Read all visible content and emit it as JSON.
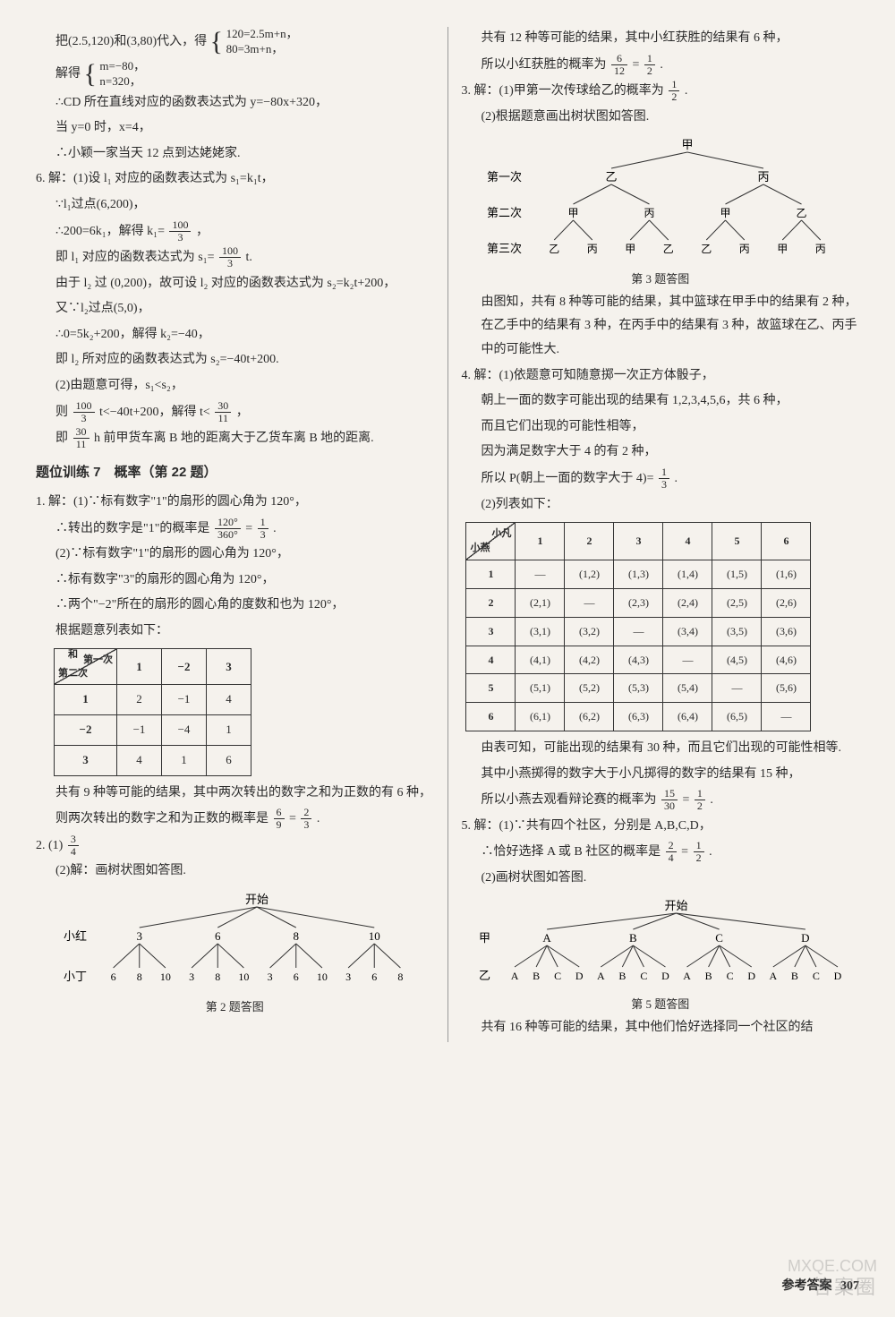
{
  "leftCol": {
    "p1_lines": [
      "把(2.5,120)和(3,80)代入，得",
      "解得",
      "∴CD 所在直线对应的函数表达式为 y=−80x+320，",
      "当 y=0 时，x=4，",
      "∴小颖一家当天 12 点到达姥姥家."
    ],
    "eq1_top": "120=2.5m+n，",
    "eq1_bot": "80=3m+n，",
    "eq2_top": "m=−80，",
    "eq2_bot": "n=320，",
    "q6": [
      "6. 解：(1)设 l₁ 对应的函数表达式为 s₁=k₁t，",
      "∵l₁过点(6,200)，",
      "∴200=6k₁，解得 k₁=",
      "即 l₁ 对应的函数表达式为 s₁=",
      "由于 l₂ 过 (0,200)，故可设 l₂ 对应的函数表达式为 s₂=k₂t+200，",
      "又∵l₂过点(5,0)，",
      "∴0=5k₂+200，解得 k₂=−40，",
      "即 l₂ 所对应的函数表达式为 s₂=−40t+200.",
      "(2)由题意可得，s₁<s₂，",
      "则",
      "即"
    ],
    "frac_100_3_n": "100",
    "frac_100_3_d": "3",
    "q6_l9_suffix": "t<−40t+200，解得 t<",
    "frac_30_11_n": "30",
    "frac_30_11_d": "11",
    "q6_l10_suffix": " h 前甲货车离 B 地的距离大于乙货车离 B 地的距离.",
    "section7_title": "题位训练 7　概率（第 22 题）",
    "q1": [
      "1. 解：(1)∵标有数字\"1\"的扇形的圆心角为 120°，",
      "∴转出的数字是\"1\"的概率是",
      "(2)∵标有数字\"1\"的扇形的圆心角为 120°，",
      "∴标有数字\"3\"的扇形的圆心角为 120°，",
      "∴两个\"−2\"所在的扇形的圆心角的度数和也为 120°，",
      "根据题意列表如下："
    ],
    "frac_120_360_n": "120°",
    "frac_120_360_d": "360°",
    "frac_1_3_n": "1",
    "frac_1_3_d": "3",
    "table1": {
      "diag_top": "第一次",
      "diag_bot_label": "和",
      "diag_bot": "第二次",
      "cols": [
        "1",
        "−2",
        "3"
      ],
      "rows": [
        {
          "h": "1",
          "cells": [
            "2",
            "−1",
            "4"
          ]
        },
        {
          "h": "−2",
          "cells": [
            "−1",
            "−4",
            "1"
          ]
        },
        {
          "h": "3",
          "cells": [
            "4",
            "1",
            "6"
          ]
        }
      ]
    },
    "q1_after": [
      "共有 9 种等可能的结果，其中两次转出的数字之和为正数的有 6 种，",
      "则两次转出的数字之和为正数的概率是"
    ],
    "frac_6_9_n": "6",
    "frac_6_9_d": "9",
    "frac_2_3_n": "2",
    "frac_2_3_d": "3",
    "q2_a": "2. (1)",
    "frac_3_4_n": "3",
    "frac_3_4_d": "4",
    "q2_b": "(2)解：画树状图如答图.",
    "tree2": {
      "root": "开始",
      "level1_label": "小红",
      "level1": [
        "3",
        "6",
        "8",
        "10"
      ],
      "level2_label": "小丁",
      "level2": [
        [
          "6",
          "8",
          "10"
        ],
        [
          "3",
          "8",
          "10"
        ],
        [
          "3",
          "6",
          "10"
        ],
        [
          "3",
          "6",
          "8"
        ]
      ],
      "caption": "第 2 题答图"
    }
  },
  "rightCol": {
    "top": [
      "共有 12 种等可能的结果，其中小红获胜的结果有 6 种，",
      "所以小红获胜的概率为"
    ],
    "frac_6_12_n": "6",
    "frac_6_12_d": "12",
    "frac_1_2_n": "1",
    "frac_1_2_d": "2",
    "q3": [
      "3. 解：(1)甲第一次传球给乙的概率为",
      "(2)根据题意画出树状图如答图."
    ],
    "tree3": {
      "root": "甲",
      "row1_label": "第一次",
      "row1": [
        "乙",
        "丙"
      ],
      "row2_label": "第二次",
      "row2": [
        [
          "甲",
          "丙"
        ],
        [
          "甲",
          "乙"
        ]
      ],
      "row3_label": "第三次",
      "row3": [
        [
          "乙",
          "丙"
        ],
        [
          "甲",
          "乙"
        ],
        [
          "乙",
          "丙"
        ],
        [
          "甲",
          "丙"
        ]
      ],
      "caption": "第 3 题答图"
    },
    "q3_after": [
      "由图知，共有 8 种等可能的结果，其中篮球在甲手中的结果有 2 种，在乙手中的结果有 3 种，在丙手中的结果有 3 种，故篮球在乙、丙手中的可能性大."
    ],
    "q4": [
      "4. 解：(1)依题意可知随意掷一次正方体骰子，",
      "朝上一面的数字可能出现的结果有 1,2,3,4,5,6，共 6 种，",
      "而且它们出现的可能性相等，",
      "因为满足数字大于 4 的有 2 种，",
      "所以 P(朝上一面的数字大于 4)=",
      "(2)列表如下："
    ],
    "table2": {
      "diag_top": "小凡",
      "diag_bot": "小燕",
      "cols": [
        "1",
        "2",
        "3",
        "4",
        "5",
        "6"
      ],
      "rows": [
        {
          "h": "1",
          "cells": [
            "—",
            "(1,2)",
            "(1,3)",
            "(1,4)",
            "(1,5)",
            "(1,6)"
          ]
        },
        {
          "h": "2",
          "cells": [
            "(2,1)",
            "—",
            "(2,3)",
            "(2,4)",
            "(2,5)",
            "(2,6)"
          ]
        },
        {
          "h": "3",
          "cells": [
            "(3,1)",
            "(3,2)",
            "—",
            "(3,4)",
            "(3,5)",
            "(3,6)"
          ]
        },
        {
          "h": "4",
          "cells": [
            "(4,1)",
            "(4,2)",
            "(4,3)",
            "—",
            "(4,5)",
            "(4,6)"
          ]
        },
        {
          "h": "5",
          "cells": [
            "(5,1)",
            "(5,2)",
            "(5,3)",
            "(5,4)",
            "—",
            "(5,6)"
          ]
        },
        {
          "h": "6",
          "cells": [
            "(6,1)",
            "(6,2)",
            "(6,3)",
            "(6,4)",
            "(6,5)",
            "—"
          ]
        }
      ]
    },
    "q4_after": [
      "由表可知，可能出现的结果有 30 种，而且它们出现的可能性相等.",
      "其中小燕掷得的数字大于小凡掷得的数字的结果有 15 种，",
      "所以小燕去观看辩论赛的概率为"
    ],
    "frac_15_30_n": "15",
    "frac_15_30_d": "30",
    "q5": [
      "5. 解：(1)∵共有四个社区，分别是 A,B,C,D，",
      "∴恰好选择 A 或 B 社区的概率是",
      "(2)画树状图如答图."
    ],
    "frac_2_4_n": "2",
    "frac_2_4_d": "4",
    "tree5": {
      "root": "开始",
      "row1_label": "甲",
      "row1": [
        "A",
        "B",
        "C",
        "D"
      ],
      "row2_label": "乙",
      "row2": [
        [
          "A",
          "B",
          "C",
          "D"
        ],
        [
          "A",
          "B",
          "C",
          "D"
        ],
        [
          "A",
          "B",
          "C",
          "D"
        ],
        [
          "A",
          "B",
          "C",
          "D"
        ]
      ],
      "caption": "第 5 题答图"
    },
    "q5_after": "共有 16 种等可能的结果，其中他们恰好选择同一个社区的结"
  },
  "footer": {
    "label": "参考答案",
    "page": "307"
  },
  "watermark": "答案圈",
  "watermark2": "MXQE.COM"
}
